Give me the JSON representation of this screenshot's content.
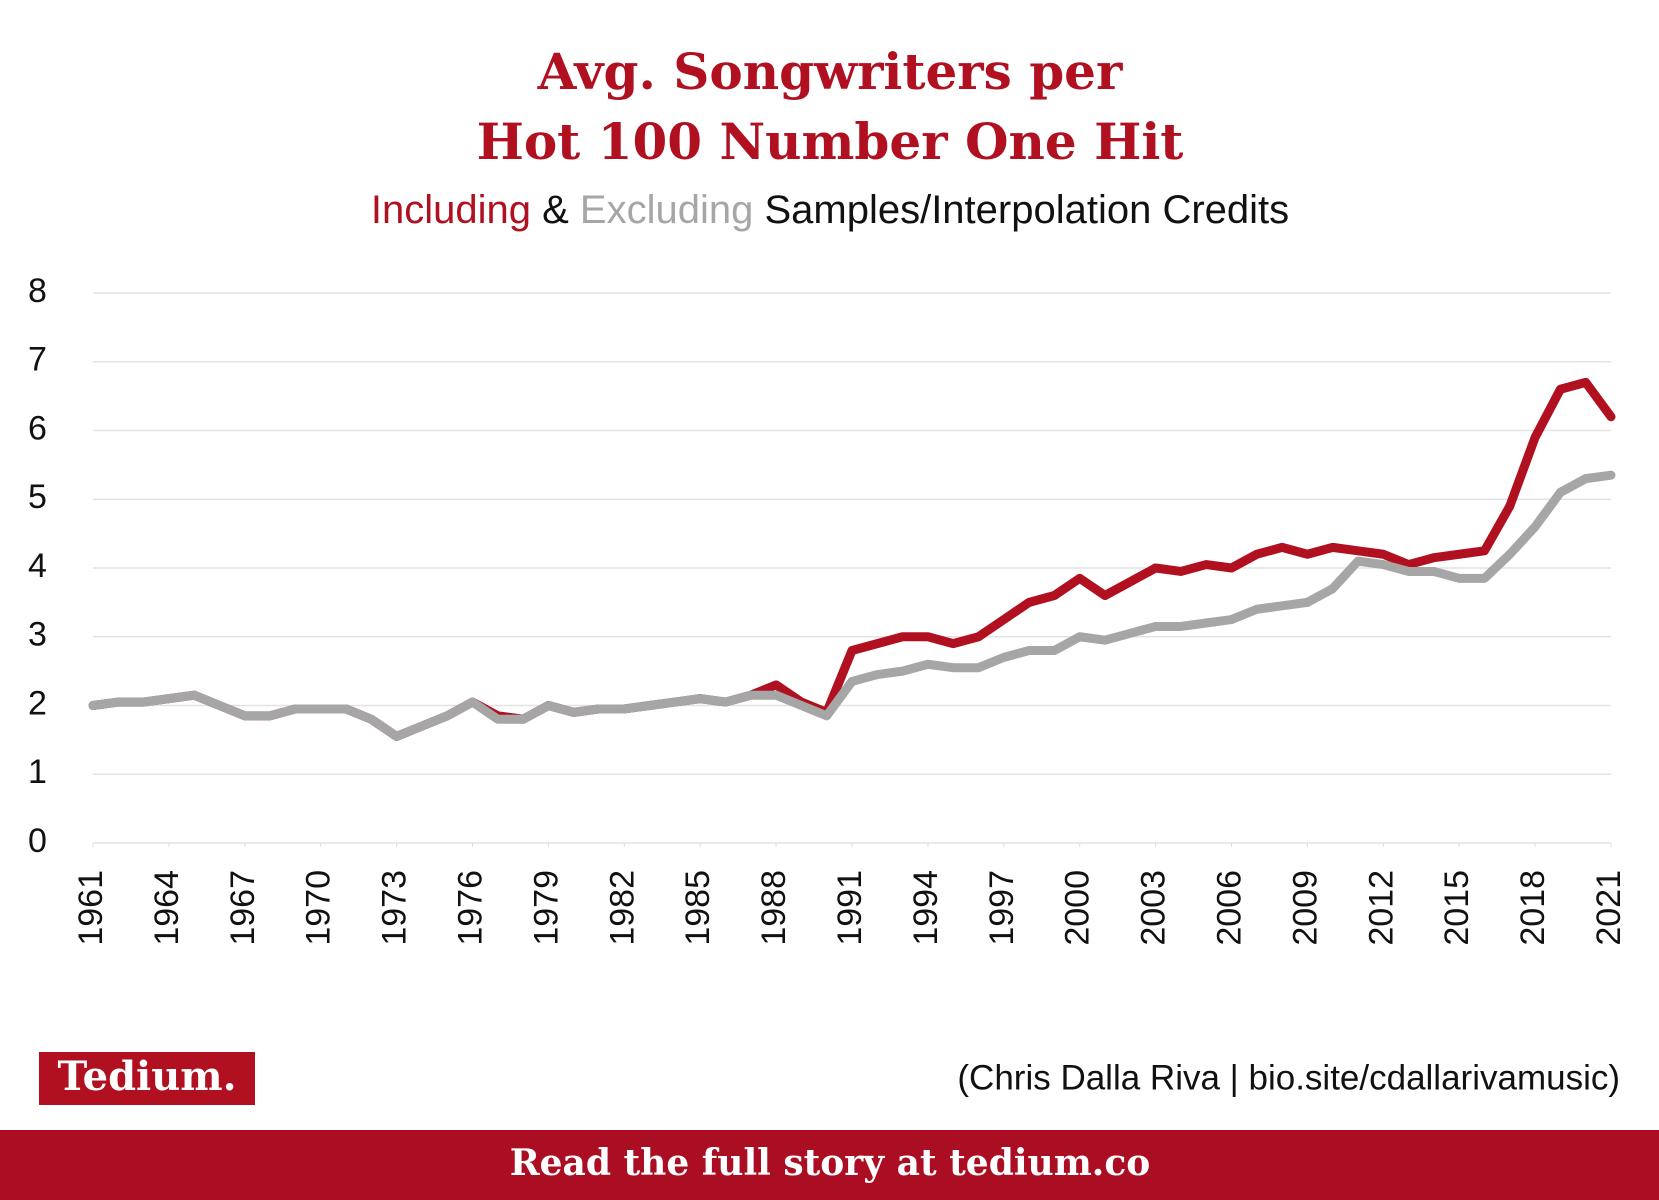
{
  "chart_data": {
    "type": "line",
    "title": [
      "Avg. Songwriters per",
      "Hot 100 Number One Hit"
    ],
    "subtitle_parts": [
      "&",
      "Samples/Interpolation Credits"
    ],
    "x": [
      1961,
      1962,
      1963,
      1964,
      1965,
      1966,
      1967,
      1968,
      1969,
      1970,
      1971,
      1972,
      1973,
      1974,
      1975,
      1976,
      1977,
      1978,
      1979,
      1980,
      1981,
      1982,
      1983,
      1984,
      1985,
      1986,
      1987,
      1988,
      1989,
      1990,
      1991,
      1992,
      1993,
      1994,
      1995,
      1996,
      1997,
      1998,
      1999,
      2000,
      2001,
      2002,
      2003,
      2004,
      2005,
      2006,
      2007,
      2008,
      2009,
      2010,
      2011,
      2012,
      2013,
      2014,
      2015,
      2016,
      2017,
      2018,
      2019,
      2020,
      2021
    ],
    "series": [
      {
        "name": "Including",
        "color": "#b01020",
        "values": [
          2.0,
          2.05,
          2.05,
          2.1,
          2.15,
          2.0,
          1.85,
          1.85,
          1.95,
          1.95,
          1.95,
          1.8,
          1.55,
          1.7,
          1.85,
          2.05,
          1.85,
          1.8,
          2.0,
          1.9,
          1.95,
          1.95,
          2.0,
          2.05,
          2.1,
          2.05,
          2.15,
          2.3,
          2.05,
          1.9,
          2.8,
          2.9,
          3.0,
          3.0,
          2.9,
          3.0,
          3.25,
          3.5,
          3.6,
          3.85,
          3.6,
          3.8,
          4.0,
          3.95,
          4.05,
          4.0,
          4.2,
          4.3,
          4.2,
          4.3,
          4.25,
          4.2,
          4.05,
          4.15,
          4.2,
          4.25,
          4.9,
          5.9,
          6.6,
          6.7,
          6.2
        ]
      },
      {
        "name": "Excluding",
        "color": "#a6a6a6",
        "values": [
          2.0,
          2.05,
          2.05,
          2.1,
          2.15,
          2.0,
          1.85,
          1.85,
          1.95,
          1.95,
          1.95,
          1.8,
          1.55,
          1.7,
          1.85,
          2.05,
          1.8,
          1.8,
          2.0,
          1.9,
          1.95,
          1.95,
          2.0,
          2.05,
          2.1,
          2.05,
          2.15,
          2.15,
          2.0,
          1.85,
          2.35,
          2.45,
          2.5,
          2.6,
          2.55,
          2.55,
          2.7,
          2.8,
          2.8,
          3.0,
          2.95,
          3.05,
          3.15,
          3.15,
          3.2,
          3.25,
          3.4,
          3.45,
          3.5,
          3.7,
          4.1,
          4.05,
          3.95,
          3.95,
          3.85,
          3.85,
          4.2,
          4.6,
          5.1,
          5.3,
          5.35
        ]
      }
    ],
    "xlim": [
      1961,
      2021
    ],
    "xticks": [
      1961,
      1964,
      1967,
      1970,
      1973,
      1976,
      1979,
      1982,
      1985,
      1988,
      1991,
      1994,
      1997,
      2000,
      2003,
      2006,
      2009,
      2012,
      2015,
      2018,
      2021
    ],
    "ylim": [
      0,
      8
    ],
    "yticks": [
      0,
      1,
      2,
      3,
      4,
      5,
      6,
      7,
      8
    ],
    "grid": true
  },
  "logo": "Tedium.",
  "credit": "(Chris Dalla Riva | bio.site/cdallarivamusic)",
  "banner": "Read the full story at tedium.co"
}
